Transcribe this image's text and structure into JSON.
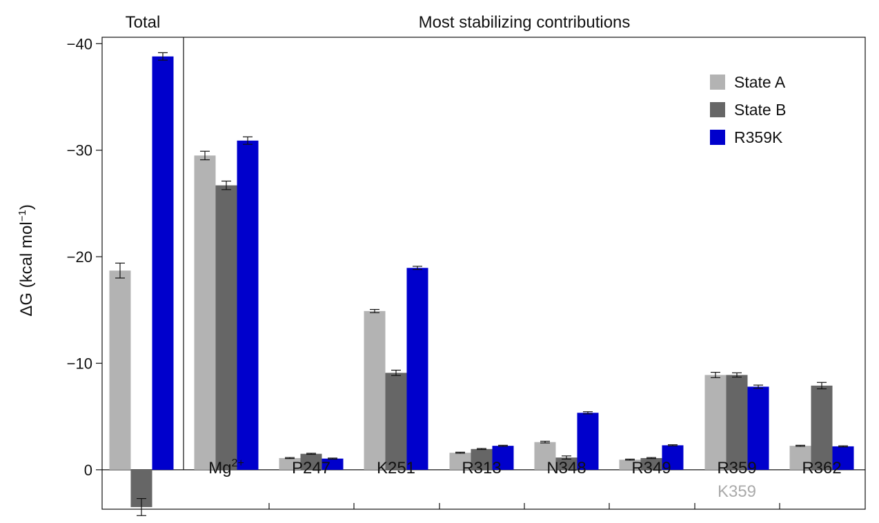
{
  "chart_data": {
    "type": "bar",
    "panels": [
      {
        "title": "Total"
      },
      {
        "title": "Most stabilizing contributions"
      }
    ],
    "ylabel": {
      "main": "ΔG (kcal mol",
      "superscript": "−1",
      "close": ")"
    },
    "y_axis_inverted": true,
    "ylim": [
      3.7,
      -40.6
    ],
    "yticks": [
      {
        "value": 0,
        "label": "0"
      },
      {
        "value": -10,
        "label": "−10"
      },
      {
        "value": -20,
        "label": "−20"
      },
      {
        "value": -30,
        "label": "−30"
      },
      {
        "value": -40,
        "label": "−40"
      }
    ],
    "categories": [
      {
        "label": "Total",
        "panel": 0
      },
      {
        "label": "Mg",
        "sup": "2+",
        "panel": 1
      },
      {
        "label": "P247",
        "panel": 1
      },
      {
        "label": "K251",
        "panel": 1
      },
      {
        "label": "R313",
        "panel": 1
      },
      {
        "label": "N348",
        "panel": 1
      },
      {
        "label": "R349",
        "panel": 1
      },
      {
        "label": "R359",
        "sublabel": "K359",
        "panel": 1
      },
      {
        "label": "R362",
        "panel": 1
      }
    ],
    "series": [
      {
        "name": "State A",
        "color": "#b3b3b3",
        "values": [
          -18.7,
          -29.5,
          -1.1,
          -14.9,
          -1.6,
          -2.6,
          -0.95,
          -8.9,
          -2.25
        ],
        "errors": [
          0.7,
          0.4,
          0.05,
          0.15,
          0.05,
          0.08,
          0.05,
          0.25,
          0.05
        ]
      },
      {
        "name": "State B",
        "color": "#666666",
        "values": [
          3.5,
          -26.7,
          -1.5,
          -9.1,
          -1.95,
          -1.15,
          -1.1,
          -8.9,
          -7.9
        ],
        "errors": [
          0.8,
          0.4,
          0.05,
          0.25,
          0.05,
          0.15,
          0.05,
          0.2,
          0.3
        ]
      },
      {
        "name": "R359K",
        "color": "#0000cc",
        "values": [
          -38.8,
          -30.9,
          -1.05,
          -18.95,
          -2.25,
          -5.35,
          -2.3,
          -7.8,
          -2.2
        ],
        "errors": [
          0.35,
          0.35,
          0.05,
          0.15,
          0.05,
          0.1,
          0.05,
          0.15,
          0.05
        ]
      }
    ],
    "legend_position": "top-right",
    "grid": false,
    "sublabel_color": "#aaaaaa"
  }
}
